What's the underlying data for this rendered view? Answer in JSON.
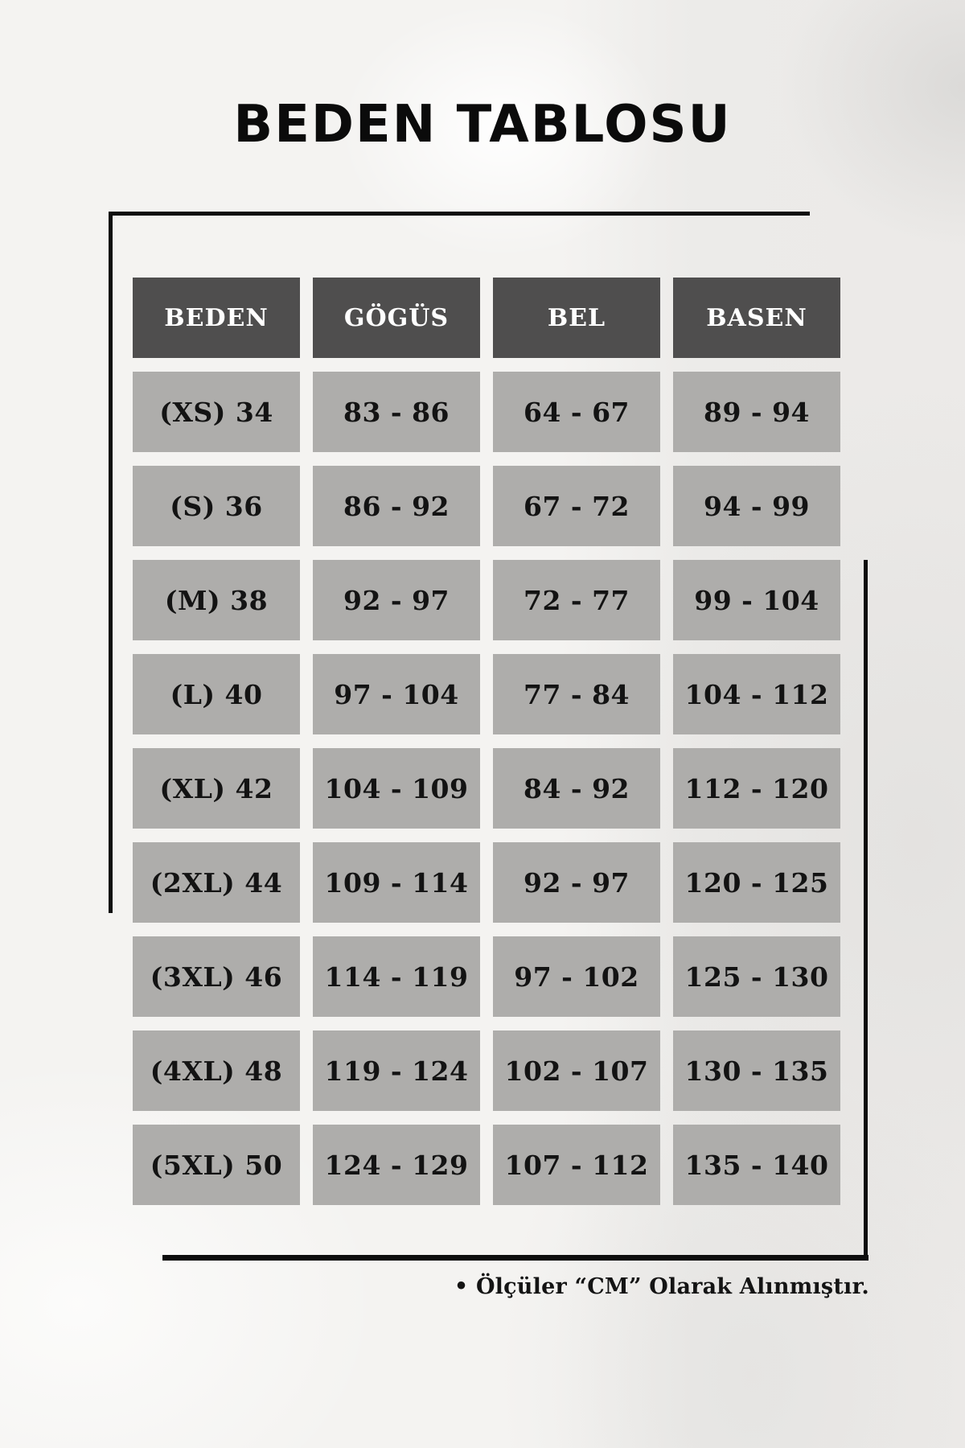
{
  "page": {
    "title": "BEDEN TABLOSU",
    "footnote": "• Ölçüler “CM” Olarak Alınmıştır."
  },
  "table": {
    "headers": [
      "BEDEN",
      "GÖGÜS",
      "BEL",
      "BASEN"
    ],
    "rows": [
      [
        "(XS) 34",
        "83 - 86",
        "64 - 67",
        "89 - 94"
      ],
      [
        "(S) 36",
        "86 - 92",
        "67 - 72",
        "94 - 99"
      ],
      [
        "(M) 38",
        "92 - 97",
        "72 - 77",
        "99 - 104"
      ],
      [
        "(L) 40",
        "97 - 104",
        "77 - 84",
        "104 - 112"
      ],
      [
        "(XL) 42",
        "104 - 109",
        "84 - 92",
        "112 - 120"
      ],
      [
        "(2XL) 44",
        "109 - 114",
        "92 - 97",
        "120 - 125"
      ],
      [
        "(3XL) 46",
        "114 - 119",
        "97 - 102",
        "125 - 130"
      ],
      [
        "(4XL) 48",
        "119 - 124",
        "102 - 107",
        "130 - 135"
      ],
      [
        "(5XL) 50",
        "124 - 129",
        "107 - 112",
        "135 - 140"
      ]
    ]
  },
  "colors": {
    "page_background": "#f1f0ee",
    "header_background": "#4f4e4e",
    "header_text": "#ffffff",
    "cell_background": "#aeadab",
    "cell_text": "#131313",
    "frame_line": "#0d0d0d"
  }
}
